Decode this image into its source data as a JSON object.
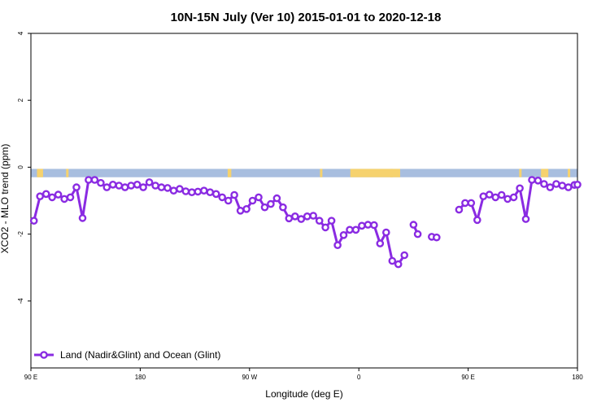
{
  "chart_data": {
    "type": "line",
    "title": "10N-15N July (Ver 10)   2015-01-01 to 2020-12-18",
    "xlabel": "Longitude (deg E)",
    "ylabel": "XCO2 - MLO trend (ppm)",
    "xlim": [
      90,
      450
    ],
    "ylim": [
      -6,
      4
    ],
    "x_ticks": [
      {
        "value": 90,
        "label": "90 E"
      },
      {
        "value": 180,
        "label": "180"
      },
      {
        "value": 270,
        "label": "90 W"
      },
      {
        "value": 360,
        "label": "0"
      },
      {
        "value": 450,
        "label": "90 E"
      },
      {
        "value": 540,
        "label": "180"
      }
    ],
    "x_ticks_note": "",
    "y_ticks": [
      {
        "value": -4,
        "label": "-4"
      },
      {
        "value": -2,
        "label": "-2"
      },
      {
        "value": 0,
        "label": "0"
      },
      {
        "value": 2,
        "label": "2"
      },
      {
        "value": 4,
        "label": "4"
      }
    ],
    "grid": false,
    "legend_position": "bottom-left",
    "land_band": {
      "y_top": -0.05,
      "y_bottom": -0.3,
      "ocean_color": "#A8BEDF",
      "land_color": "#F6D26E"
    },
    "series": [
      {
        "name": "Land (Nadir&Glint) and Ocean (Glint)",
        "color": "#8A2BE2",
        "points": [
          [
            92.5,
            -1.6
          ],
          [
            97.5,
            -0.87
          ],
          [
            102.5,
            -0.8
          ],
          [
            107.5,
            -0.9
          ],
          [
            112.5,
            -0.82
          ],
          [
            117.5,
            -0.95
          ],
          [
            122.5,
            -0.9
          ],
          [
            127.5,
            -0.6
          ],
          [
            132.5,
            -1.52
          ],
          [
            137.5,
            -0.38
          ],
          [
            142.5,
            -0.38
          ],
          [
            147.5,
            -0.47
          ],
          [
            152.5,
            -0.6
          ],
          [
            157.5,
            -0.52
          ],
          [
            162.5,
            -0.55
          ],
          [
            167.5,
            -0.6
          ],
          [
            172.5,
            -0.55
          ],
          [
            177.5,
            -0.52
          ],
          [
            182.5,
            -0.6
          ],
          [
            187.5,
            -0.45
          ],
          [
            192.5,
            -0.55
          ],
          [
            197.5,
            -0.6
          ],
          [
            202.5,
            -0.62
          ],
          [
            207.5,
            -0.7
          ],
          [
            212.5,
            -0.65
          ],
          [
            217.5,
            -0.72
          ],
          [
            222.5,
            -0.75
          ],
          [
            227.5,
            -0.73
          ],
          [
            232.5,
            -0.7
          ],
          [
            237.5,
            -0.75
          ],
          [
            242.5,
            -0.8
          ],
          [
            247.5,
            -0.9
          ],
          [
            252.5,
            -1.0
          ],
          [
            257.5,
            -0.83
          ],
          [
            262.5,
            -1.3
          ],
          [
            267.5,
            -1.25
          ],
          [
            272.5,
            -1.0
          ],
          [
            277.5,
            -0.9
          ],
          [
            282.5,
            -1.2
          ],
          [
            287.5,
            -1.1
          ],
          [
            292.5,
            -0.93
          ],
          [
            297.5,
            -1.2
          ],
          [
            302.5,
            -1.53
          ],
          [
            307.5,
            -1.47
          ],
          [
            312.5,
            -1.55
          ],
          [
            317.5,
            -1.47
          ],
          [
            322.5,
            -1.45
          ],
          [
            327.5,
            -1.6
          ],
          [
            332.5,
            -1.8
          ],
          [
            337.5,
            -1.6
          ],
          [
            342.5,
            -2.33
          ],
          [
            347.5,
            -2.03
          ],
          [
            352.5,
            -1.87
          ],
          [
            357.5,
            -1.87
          ],
          [
            362.5,
            -1.75
          ],
          [
            367.5,
            -1.72
          ],
          [
            372.5,
            -1.73
          ],
          [
            377.5,
            -2.28
          ],
          [
            382.5,
            -1.95
          ],
          [
            387.5,
            -2.8
          ],
          [
            392.5,
            -2.9
          ],
          [
            397.5,
            -2.63
          ],
          null,
          [
            405,
            -1.72
          ],
          [
            408.5,
            -2.0
          ],
          null,
          [
            420,
            -2.08
          ],
          [
            424,
            -2.1
          ],
          null,
          [
            442.5,
            -1.27
          ],
          [
            447.5,
            -1.07
          ],
          [
            452.5,
            -1.07
          ],
          [
            457.5,
            -1.58
          ],
          [
            462.5,
            -0.87
          ],
          [
            467.5,
            -0.82
          ],
          [
            472.5,
            -0.9
          ],
          [
            477.5,
            -0.83
          ],
          [
            482.5,
            -0.95
          ],
          [
            487.5,
            -0.9
          ],
          [
            492.5,
            -0.63
          ],
          [
            497.5,
            -1.55
          ],
          [
            502.5,
            -0.38
          ],
          [
            507.5,
            -0.4
          ],
          [
            512.5,
            -0.5
          ],
          [
            517.5,
            -0.6
          ],
          [
            522.5,
            -0.5
          ],
          [
            527.5,
            -0.55
          ],
          [
            532.5,
            -0.6
          ],
          [
            537.5,
            -0.53
          ],
          [
            540,
            -0.52
          ]
        ]
      }
    ]
  }
}
